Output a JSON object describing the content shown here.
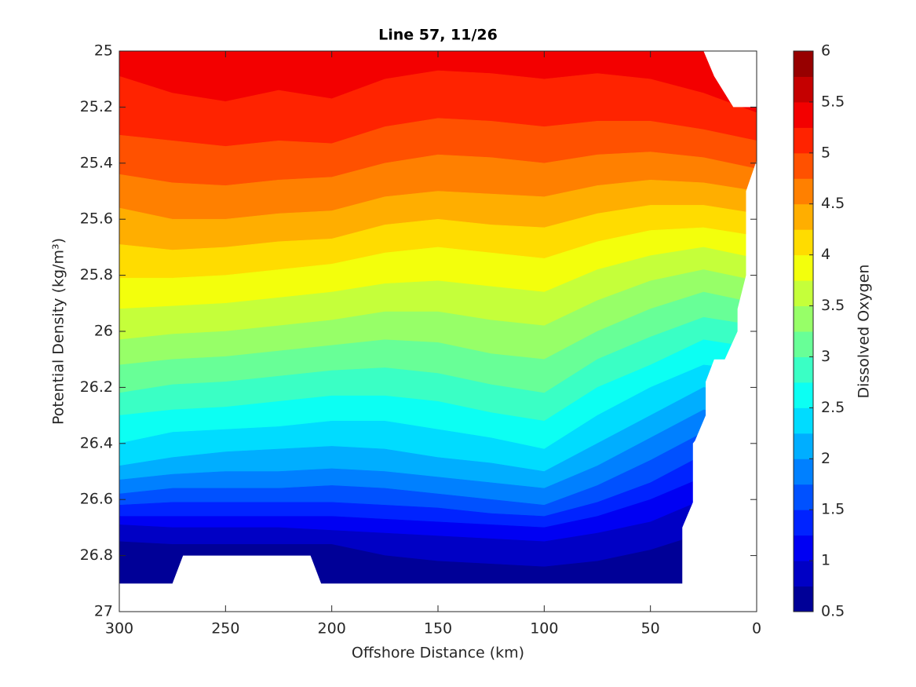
{
  "chart_data": {
    "type": "contourf",
    "title": "Line 57, 11/26",
    "xlabel": "Offshore Distance (km)",
    "ylabel": "Potential Density (kg/m³)",
    "colorbar_label": "Dissolved Oxygen",
    "colormap": "jet",
    "xlim": [
      300,
      0
    ],
    "xticks": [
      300,
      250,
      200,
      150,
      100,
      50,
      0
    ],
    "ylim": [
      27,
      25
    ],
    "yticks": [
      25,
      25.2,
      25.4,
      25.6,
      25.8,
      26,
      26.2,
      26.4,
      26.6,
      26.8,
      27
    ],
    "clim": [
      0.5,
      6
    ],
    "cticks": [
      0.5,
      1,
      1.5,
      2,
      2.5,
      3,
      3.5,
      4,
      4.5,
      5,
      5.5,
      6
    ],
    "x": [
      300,
      275,
      250,
      225,
      200,
      175,
      150,
      125,
      100,
      75,
      50,
      25,
      0
    ],
    "levels": [
      {
        "level": 5.25,
        "y": [
          25.09,
          25.15,
          25.18,
          25.14,
          25.17,
          25.1,
          25.07,
          25.08,
          25.1,
          25.08,
          25.1,
          25.15,
          25.22
        ]
      },
      {
        "level": 5.0,
        "y": [
          25.3,
          25.32,
          25.34,
          25.32,
          25.33,
          25.27,
          25.24,
          25.25,
          25.27,
          25.25,
          25.25,
          25.28,
          25.32
        ]
      },
      {
        "level": 4.75,
        "y": [
          25.44,
          25.47,
          25.48,
          25.46,
          25.45,
          25.4,
          25.37,
          25.38,
          25.4,
          25.37,
          25.36,
          25.38,
          25.42
        ]
      },
      {
        "level": 4.5,
        "y": [
          25.56,
          25.6,
          25.6,
          25.58,
          25.57,
          25.52,
          25.5,
          25.51,
          25.52,
          25.48,
          25.46,
          25.47,
          25.5
        ]
      },
      {
        "level": 4.25,
        "y": [
          25.69,
          25.71,
          25.7,
          25.68,
          25.67,
          25.62,
          25.6,
          25.62,
          25.63,
          25.58,
          25.55,
          25.55,
          25.58
        ]
      },
      {
        "level": 4.0,
        "y": [
          25.81,
          25.81,
          25.8,
          25.78,
          25.76,
          25.72,
          25.7,
          25.72,
          25.74,
          25.68,
          25.64,
          25.63,
          25.66
        ]
      },
      {
        "level": 3.75,
        "y": [
          25.92,
          25.91,
          25.9,
          25.88,
          25.86,
          25.83,
          25.82,
          25.84,
          25.86,
          25.78,
          25.73,
          25.7,
          25.74
        ]
      },
      {
        "level": 3.5,
        "y": [
          26.03,
          26.01,
          26.0,
          25.98,
          25.96,
          25.93,
          25.93,
          25.96,
          25.98,
          25.89,
          25.82,
          25.78,
          25.82
        ]
      },
      {
        "level": 3.25,
        "y": [
          26.12,
          26.1,
          26.09,
          26.07,
          26.05,
          26.03,
          26.04,
          26.08,
          26.1,
          26.0,
          25.92,
          25.86,
          25.9
        ]
      },
      {
        "level": 3.0,
        "y": [
          26.22,
          26.19,
          26.18,
          26.16,
          26.14,
          26.13,
          26.15,
          26.19,
          26.22,
          26.1,
          26.02,
          25.95,
          25.98
        ]
      },
      {
        "level": 2.75,
        "y": [
          26.3,
          26.28,
          26.27,
          26.25,
          26.23,
          26.23,
          26.25,
          26.29,
          26.32,
          26.2,
          26.12,
          26.03,
          26.06
        ]
      },
      {
        "level": 2.5,
        "y": [
          26.4,
          26.36,
          26.35,
          26.34,
          26.32,
          26.32,
          26.35,
          26.38,
          26.42,
          26.3,
          26.2,
          26.12,
          26.14
        ]
      },
      {
        "level": 2.25,
        "y": [
          26.48,
          26.45,
          26.43,
          26.42,
          26.41,
          26.42,
          26.45,
          26.47,
          26.5,
          26.4,
          26.3,
          26.2,
          26.22
        ]
      },
      {
        "level": 2.0,
        "y": [
          26.53,
          26.51,
          26.5,
          26.5,
          26.49,
          26.5,
          26.52,
          26.54,
          26.56,
          26.48,
          26.38,
          26.28,
          26.3
        ]
      },
      {
        "level": 1.75,
        "y": [
          26.58,
          26.56,
          26.56,
          26.56,
          26.55,
          26.56,
          26.58,
          26.6,
          26.62,
          26.55,
          26.46,
          26.36,
          26.38
        ]
      },
      {
        "level": 1.5,
        "y": [
          26.62,
          26.61,
          26.61,
          26.61,
          26.61,
          26.62,
          26.63,
          26.65,
          26.66,
          26.61,
          26.54,
          26.44,
          26.46
        ]
      },
      {
        "level": 1.25,
        "y": [
          26.66,
          26.66,
          26.66,
          26.66,
          26.66,
          26.67,
          26.68,
          26.69,
          26.7,
          26.66,
          26.6,
          26.52,
          26.54
        ]
      },
      {
        "level": 1.0,
        "y": [
          26.69,
          26.7,
          26.7,
          26.7,
          26.71,
          26.72,
          26.73,
          26.74,
          26.75,
          26.72,
          26.68,
          26.6,
          26.62
        ]
      },
      {
        "level": 0.75,
        "y": [
          26.75,
          26.76,
          26.76,
          26.76,
          26.76,
          26.8,
          26.82,
          26.83,
          26.84,
          26.82,
          26.78,
          26.72,
          26.72
        ]
      }
    ],
    "nodata": [
      [
        [
          25,
          25
        ],
        [
          0,
          25
        ],
        [
          0,
          25.2
        ],
        [
          11,
          25.2
        ],
        [
          20,
          25.09
        ]
      ],
      [
        [
          0,
          25.39
        ],
        [
          5,
          25.5
        ],
        [
          5,
          25.8
        ],
        [
          9,
          25.92
        ],
        [
          9,
          26.0
        ],
        [
          15,
          26.1
        ],
        [
          20,
          26.1
        ],
        [
          24,
          26.18
        ],
        [
          24,
          26.3
        ],
        [
          29,
          26.39
        ],
        [
          30,
          26.4
        ],
        [
          30,
          26.61
        ],
        [
          35,
          26.7
        ],
        [
          35,
          26.9
        ],
        [
          205,
          26.9
        ],
        [
          210,
          26.8
        ],
        [
          270,
          26.8
        ],
        [
          275,
          26.9
        ],
        [
          300,
          26.9
        ],
        [
          300,
          27
        ],
        [
          0,
          27
        ]
      ]
    ]
  }
}
